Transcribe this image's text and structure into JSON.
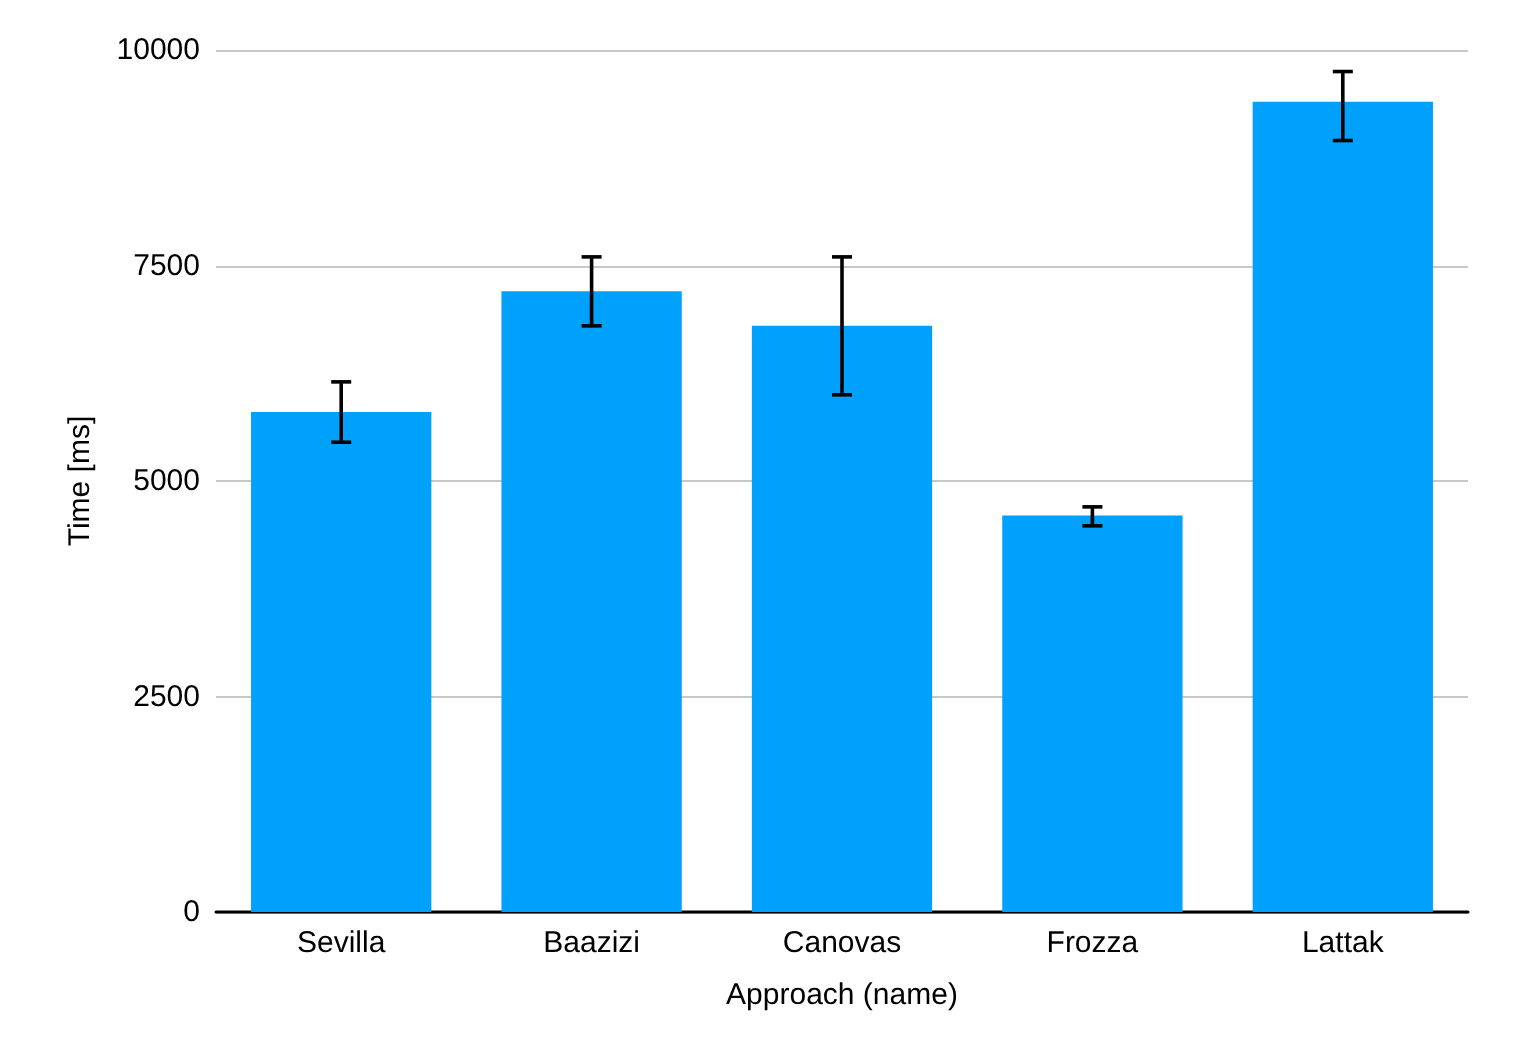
{
  "chart_data": {
    "type": "bar",
    "xlabel": "Approach (name)",
    "ylabel": "Time [ms]",
    "categories": [
      "Sevilla",
      "Baazizi",
      "Canovas",
      "Frozza",
      "Lattak"
    ],
    "values": [
      5800,
      7200,
      6800,
      4600,
      9400
    ],
    "errors": [
      [
        5450,
        6150
      ],
      [
        6800,
        7600
      ],
      [
        6000,
        7600
      ],
      [
        4480,
        4700
      ],
      [
        8950,
        9750
      ]
    ],
    "color": "#00a0fd",
    "ylim": [
      0,
      10000
    ],
    "yticks": [
      0,
      2500,
      5000,
      7500,
      10000
    ],
    "grid": "y"
  }
}
